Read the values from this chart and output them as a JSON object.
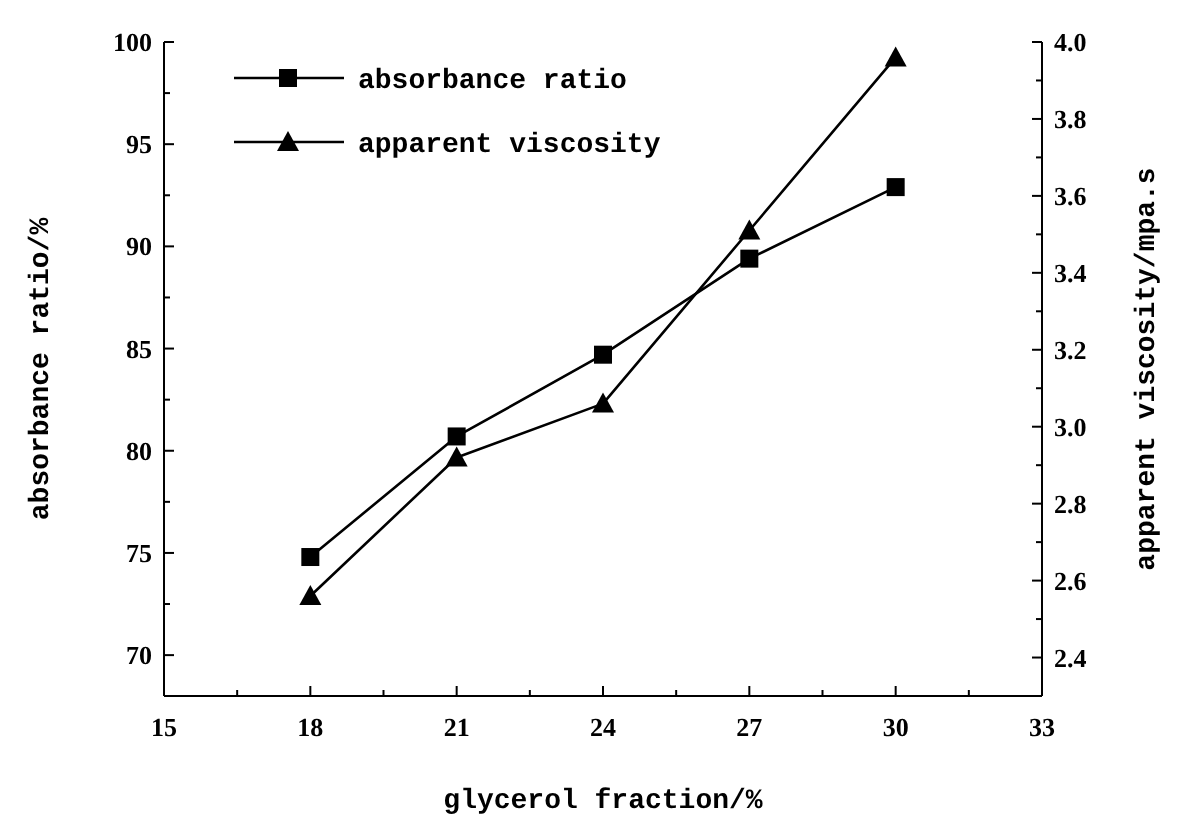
{
  "chart_data": {
    "type": "line",
    "xlabel": "glycerol fraction/%",
    "ylabel": "absorbance ratio/%",
    "y2label": "apparent viscosity/mpa.s",
    "x": [
      18,
      21,
      24,
      27,
      30
    ],
    "series": [
      {
        "name": "absorbance ratio",
        "color": "#000000",
        "values": [
          74.8,
          80.7,
          84.7,
          89.4,
          92.9
        ],
        "marker": "square"
      },
      {
        "name": "apparent viscosity",
        "color": "#000000",
        "values": [
          2.56,
          2.92,
          3.06,
          3.51,
          3.96
        ],
        "marker": "triangle",
        "axis": "y2"
      }
    ],
    "xlim": [
      15,
      33
    ],
    "xticks": [
      15,
      {
        "value": 16.5,
        "label": null
      },
      18,
      {
        "value": 19.5,
        "label": null
      },
      21,
      {
        "value": 22.5,
        "label": null
      },
      24,
      {
        "value": 25.5,
        "label": null
      },
      27,
      {
        "value": 28.5,
        "label": null
      },
      30,
      {
        "value": 31.5,
        "label": null
      },
      33
    ],
    "ylim": [
      68,
      100
    ],
    "yticks": [
      70,
      {
        "value": 72.5,
        "label": null
      },
      75,
      {
        "value": 77.5,
        "label": null
      },
      80,
      {
        "value": 82.5,
        "label": null
      },
      85,
      {
        "value": 87.5,
        "label": null
      },
      90,
      {
        "value": 92.5,
        "label": null
      },
      95,
      {
        "value": 97.5,
        "label": null
      },
      100
    ],
    "y2lim": [
      2.3,
      4.0
    ],
    "y2ticks": [
      {
        "value": 2.4,
        "label": "2.4"
      },
      {
        "value": 2.5,
        "label": null
      },
      {
        "value": 2.6,
        "label": "2.6"
      },
      {
        "value": 2.7,
        "label": null
      },
      {
        "value": 2.8,
        "label": "2.8"
      },
      {
        "value": 2.9,
        "label": null
      },
      {
        "value": 3.0,
        "label": "3.0"
      },
      {
        "value": 3.1,
        "label": null
      },
      {
        "value": 3.2,
        "label": "3.2"
      },
      {
        "value": 3.3,
        "label": null
      },
      {
        "value": 3.4,
        "label": "3.4"
      },
      {
        "value": 3.5,
        "label": null
      },
      {
        "value": 3.6,
        "label": "3.6"
      },
      {
        "value": 3.7,
        "label": null
      },
      {
        "value": 3.8,
        "label": "3.8"
      },
      {
        "value": 3.9,
        "label": null
      },
      {
        "value": 4.0,
        "label": "4.0"
      }
    ],
    "grid": false,
    "legend": "top left",
    "line_style": "solid"
  }
}
